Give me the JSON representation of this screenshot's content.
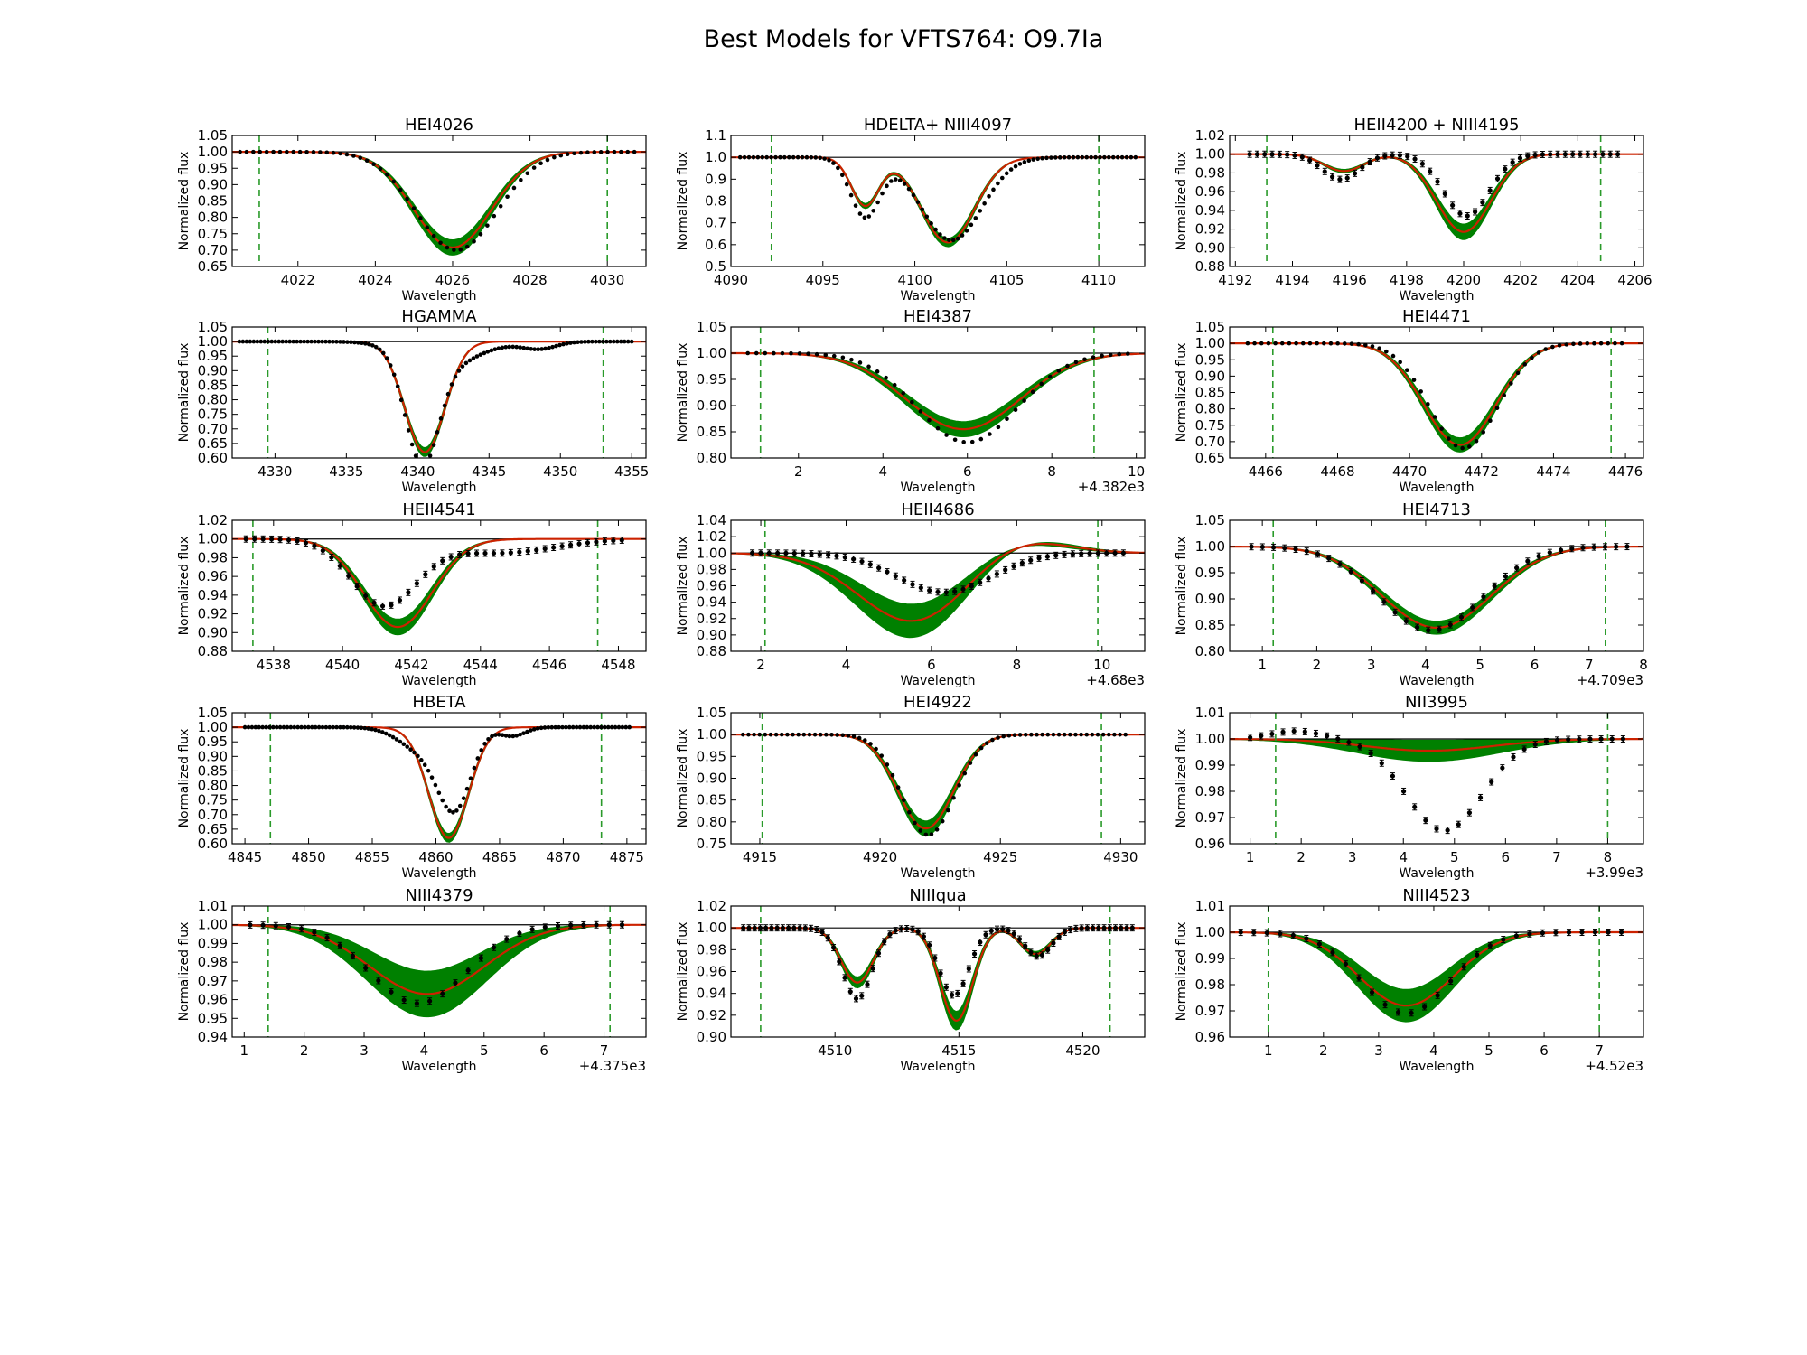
{
  "figure": {
    "title": "Best Models for VFTS764: O9.7Ia"
  },
  "colors": {
    "band": "#008000",
    "model": "#cc2200",
    "observed": "#000000",
    "window": "#2a9a2a",
    "continuum": "#000000"
  },
  "chart_data": [
    {
      "type": "line",
      "title": "HEI4026",
      "xlabel": "Wavelength",
      "ylabel": "Normalized flux",
      "xlim": [
        4020.3,
        4031.0
      ],
      "ylim": [
        0.65,
        1.05
      ],
      "xticks": [
        4022,
        4024,
        4026,
        4028,
        4030
      ],
      "xtick_labels": [
        "4022",
        "4024",
        "4026",
        "4028",
        "4030"
      ],
      "yticks": [
        0.65,
        0.7,
        0.75,
        0.8,
        0.85,
        0.9,
        0.95,
        1.0,
        1.05
      ],
      "ytick_labels": [
        "0.65",
        "0.70",
        "0.75",
        "0.80",
        "0.85",
        "0.90",
        "0.95",
        "1.00",
        "1.05"
      ],
      "offset_label": "",
      "window": [
        4021.0,
        4030.0
      ],
      "model_lines": [
        {
          "center": 4026.0,
          "depth": 0.292,
          "width": 1.0
        }
      ],
      "band_spread": 0.08,
      "observed_lines": [
        {
          "center": 4026.1,
          "depth": 0.3,
          "width": 1.05
        }
      ],
      "obs_range": [
        4020.5,
        4030.7
      ],
      "obs_points": 60,
      "error_bars": false
    },
    {
      "type": "line",
      "title": "HDELTA+ NIII4097",
      "xlabel": "Wavelength",
      "ylabel": "Normalized flux",
      "xlim": [
        4090.0,
        4112.5
      ],
      "ylim": [
        0.5,
        1.1
      ],
      "xticks": [
        4090,
        4095,
        4100,
        4105,
        4110
      ],
      "xtick_labels": [
        "4090",
        "4095",
        "4100",
        "4105",
        "4110"
      ],
      "yticks": [
        0.5,
        0.6,
        0.7,
        0.8,
        0.9,
        1.0,
        1.1
      ],
      "ytick_labels": [
        "0.5",
        "0.6",
        "0.7",
        "0.8",
        "0.9",
        "1.0",
        "1.1"
      ],
      "offset_label": "",
      "window": [
        4092.2,
        4110.0
      ],
      "model_lines": [
        {
          "center": 4097.3,
          "depth": 0.22,
          "width": 0.75
        },
        {
          "center": 4101.8,
          "depth": 0.39,
          "width": 1.45
        }
      ],
      "band_spread": 0.05,
      "observed_lines": [
        {
          "center": 4097.3,
          "depth": 0.27,
          "width": 0.8
        },
        {
          "center": 4102.0,
          "depth": 0.38,
          "width": 1.65
        }
      ],
      "obs_range": [
        4090.5,
        4112.0
      ],
      "obs_points": 90,
      "error_bars": false
    },
    {
      "type": "line",
      "title": "HEII4200 + NIII4195",
      "xlabel": "Wavelength",
      "ylabel": "Normalized flux",
      "xlim": [
        4191.8,
        4206.3
      ],
      "ylim": [
        0.88,
        1.02
      ],
      "xticks": [
        4192,
        4194,
        4196,
        4198,
        4200,
        4202,
        4204,
        4206
      ],
      "xtick_labels": [
        "4192",
        "4194",
        "4196",
        "4198",
        "4200",
        "4202",
        "4204",
        "4206"
      ],
      "yticks": [
        0.88,
        0.9,
        0.92,
        0.94,
        0.96,
        0.98,
        1.0,
        1.02
      ],
      "ytick_labels": [
        "0.88",
        "0.90",
        "0.92",
        "0.94",
        "0.96",
        "0.98",
        "1.00",
        "1.02"
      ],
      "offset_label": "",
      "window": [
        4193.1,
        4204.8
      ],
      "model_lines": [
        {
          "center": 4195.8,
          "depth": 0.018,
          "width": 0.7
        },
        {
          "center": 4200.0,
          "depth": 0.083,
          "width": 0.95
        }
      ],
      "band_spread": 0.1,
      "observed_lines": [
        {
          "center": 4195.7,
          "depth": 0.027,
          "width": 0.65
        },
        {
          "center": 4200.1,
          "depth": 0.066,
          "width": 0.8
        }
      ],
      "obs_range": [
        4192.5,
        4205.4
      ],
      "obs_points": 50,
      "error_bars": true
    },
    {
      "type": "line",
      "title": "HGAMMA",
      "xlabel": "Wavelength",
      "ylabel": "Normalized flux",
      "xlim": [
        4327.0,
        4356.0
      ],
      "ylim": [
        0.6,
        1.05
      ],
      "xticks": [
        4330,
        4335,
        4340,
        4345,
        4350,
        4355
      ],
      "xtick_labels": [
        "4330",
        "4335",
        "4340",
        "4345",
        "4350",
        "4355"
      ],
      "yticks": [
        0.6,
        0.65,
        0.7,
        0.75,
        0.8,
        0.85,
        0.9,
        0.95,
        1.0,
        1.05
      ],
      "ytick_labels": [
        "0.60",
        "0.65",
        "0.70",
        "0.75",
        "0.80",
        "0.85",
        "0.90",
        "0.95",
        "1.00",
        "1.05"
      ],
      "offset_label": "",
      "window": [
        4329.5,
        4353.0
      ],
      "model_lines": [
        {
          "center": 4340.5,
          "depth": 0.38,
          "width": 1.4
        }
      ],
      "band_spread": 0.04,
      "observed_lines": [
        {
          "center": 4340.3,
          "depth": 0.36,
          "width": 1.15
        },
        {
          "center": 4341.8,
          "depth": 0.08,
          "width": 2.4
        },
        {
          "center": 4348.5,
          "depth": 0.025,
          "width": 1.2
        }
      ],
      "obs_range": [
        4327.5,
        4355.0
      ],
      "obs_points": 110,
      "error_bars": false
    },
    {
      "type": "line",
      "title": "HEI4387",
      "xlabel": "Wavelength",
      "ylabel": "Normalized flux",
      "xlim": [
        0.4,
        10.2
      ],
      "ylim": [
        0.8,
        1.05
      ],
      "xticks": [
        2,
        4,
        6,
        8,
        10
      ],
      "xtick_labels": [
        "2",
        "4",
        "6",
        "8",
        "10"
      ],
      "yticks": [
        0.8,
        0.85,
        0.9,
        0.95,
        1.0,
        1.05
      ],
      "ytick_labels": [
        "0.80",
        "0.85",
        "0.90",
        "0.95",
        "1.00",
        "1.05"
      ],
      "offset_label": "+4.382e3",
      "window": [
        1.1,
        9.0
      ],
      "model_lines": [
        {
          "center": 5.9,
          "depth": 0.145,
          "width": 1.35
        }
      ],
      "band_spread": 0.1,
      "observed_lines": [
        {
          "center": 6.0,
          "depth": 0.17,
          "width": 1.2
        }
      ],
      "obs_range": [
        0.8,
        9.8
      ],
      "obs_points": 45,
      "error_bars": false
    },
    {
      "type": "line",
      "title": "HEI4471",
      "xlabel": "Wavelength",
      "ylabel": "Normalized flux",
      "xlim": [
        4465.0,
        4476.5
      ],
      "ylim": [
        0.65,
        1.05
      ],
      "xticks": [
        4466,
        4468,
        4470,
        4472,
        4474,
        4476
      ],
      "xtick_labels": [
        "4466",
        "4468",
        "4470",
        "4472",
        "4474",
        "4476"
      ],
      "yticks": [
        0.65,
        0.7,
        0.75,
        0.8,
        0.85,
        0.9,
        0.95,
        1.0,
        1.05
      ],
      "ytick_labels": [
        "0.65",
        "0.70",
        "0.75",
        "0.80",
        "0.85",
        "0.90",
        "0.95",
        "1.00",
        "1.05"
      ],
      "offset_label": "",
      "window": [
        4466.2,
        4475.6
      ],
      "model_lines": [
        {
          "center": 4471.4,
          "depth": 0.31,
          "width": 1.0
        }
      ],
      "band_spread": 0.07,
      "observed_lines": [
        {
          "center": 4471.5,
          "depth": 0.32,
          "width": 0.95
        }
      ],
      "obs_range": [
        4465.5,
        4475.9
      ],
      "obs_points": 55,
      "error_bars": false
    },
    {
      "type": "line",
      "title": "HEII4541",
      "xlabel": "Wavelength",
      "ylabel": "Normalized flux",
      "xlim": [
        4536.8,
        4548.8
      ],
      "ylim": [
        0.88,
        1.02
      ],
      "xticks": [
        4538,
        4540,
        4542,
        4544,
        4546,
        4548
      ],
      "xtick_labels": [
        "4538",
        "4540",
        "4542",
        "4544",
        "4546",
        "4548"
      ],
      "yticks": [
        0.88,
        0.9,
        0.92,
        0.94,
        0.96,
        0.98,
        1.0,
        1.02
      ],
      "ytick_labels": [
        "0.88",
        "0.90",
        "0.92",
        "0.94",
        "0.96",
        "0.98",
        "1.00",
        "1.02"
      ],
      "offset_label": "",
      "window": [
        4537.4,
        4547.4
      ],
      "model_lines": [
        {
          "center": 4541.6,
          "depth": 0.094,
          "width": 1.0
        }
      ],
      "band_spread": 0.09,
      "observed_lines": [
        {
          "center": 4541.2,
          "depth": 0.07,
          "width": 0.95
        },
        {
          "center": 4544.5,
          "depth": 0.015,
          "width": 1.6
        }
      ],
      "obs_range": [
        4537.2,
        4548.1
      ],
      "obs_points": 45,
      "error_bars": true
    },
    {
      "type": "line",
      "title": "HEII4686",
      "xlabel": "Wavelength",
      "ylabel": "Normalized flux",
      "xlim": [
        1.3,
        11.0
      ],
      "ylim": [
        0.88,
        1.04
      ],
      "xticks": [
        2,
        4,
        6,
        8,
        10
      ],
      "xtick_labels": [
        "2",
        "4",
        "6",
        "8",
        "10"
      ],
      "yticks": [
        0.88,
        0.9,
        0.92,
        0.94,
        0.96,
        0.98,
        1.0,
        1.02,
        1.04
      ],
      "ytick_labels": [
        "0.88",
        "0.90",
        "0.92",
        "0.94",
        "0.96",
        "0.98",
        "1.00",
        "1.02",
        "1.04"
      ],
      "offset_label": "+4.68e3",
      "window": [
        2.1,
        9.9
      ],
      "model_lines": [
        {
          "center": 5.6,
          "depth": 0.085,
          "width": 1.3
        },
        {
          "center": 7.9,
          "depth": -0.021,
          "width": 1.1
        }
      ],
      "band_spread": 0.25,
      "observed_lines": [
        {
          "center": 6.3,
          "depth": 0.048,
          "width": 1.1
        }
      ],
      "obs_range": [
        1.8,
        10.5
      ],
      "obs_points": 45,
      "error_bars": true
    },
    {
      "type": "line",
      "title": "HEI4713",
      "xlabel": "Wavelength",
      "ylabel": "Normalized flux",
      "xlim": [
        0.4,
        8.0
      ],
      "ylim": [
        0.8,
        1.05
      ],
      "xticks": [
        1,
        2,
        3,
        4,
        5,
        6,
        7,
        8
      ],
      "xtick_labels": [
        "1",
        "2",
        "3",
        "4",
        "5",
        "6",
        "7",
        "8"
      ],
      "yticks": [
        0.8,
        0.85,
        0.9,
        0.95,
        1.0,
        1.05
      ],
      "ytick_labels": [
        "0.80",
        "0.85",
        "0.90",
        "0.95",
        "1.00",
        "1.05"
      ],
      "offset_label": "+4.709e3",
      "window": [
        1.2,
        7.3
      ],
      "model_lines": [
        {
          "center": 4.2,
          "depth": 0.155,
          "width": 1.0
        }
      ],
      "band_spread": 0.08,
      "observed_lines": [
        {
          "center": 4.1,
          "depth": 0.16,
          "width": 0.95
        }
      ],
      "obs_range": [
        0.8,
        7.7
      ],
      "obs_points": 35,
      "error_bars": true
    },
    {
      "type": "line",
      "title": "HBETA",
      "xlabel": "Wavelength",
      "ylabel": "Normalized flux",
      "xlim": [
        4844.0,
        4876.5
      ],
      "ylim": [
        0.6,
        1.05
      ],
      "xticks": [
        4845,
        4850,
        4855,
        4860,
        4865,
        4870,
        4875
      ],
      "xtick_labels": [
        "4845",
        "4850",
        "4855",
        "4860",
        "4865",
        "4870",
        "4875"
      ],
      "yticks": [
        0.6,
        0.65,
        0.7,
        0.75,
        0.8,
        0.85,
        0.9,
        0.95,
        1.0,
        1.05
      ],
      "ytick_labels": [
        "0.60",
        "0.65",
        "0.70",
        "0.75",
        "0.80",
        "0.85",
        "0.90",
        "0.95",
        "1.00",
        "1.05"
      ],
      "offset_label": "",
      "window": [
        4847.0,
        4873.0
      ],
      "model_lines": [
        {
          "center": 4861.0,
          "depth": 0.38,
          "width": 1.55
        }
      ],
      "band_spread": 0.04,
      "observed_lines": [
        {
          "center": 4861.5,
          "depth": 0.26,
          "width": 1.3
        },
        {
          "center": 4859.0,
          "depth": 0.08,
          "width": 1.8
        },
        {
          "center": 4866.0,
          "depth": 0.03,
          "width": 1.0
        }
      ],
      "obs_range": [
        4845.0,
        4875.2
      ],
      "obs_points": 110,
      "error_bars": false
    },
    {
      "type": "line",
      "title": "HEI4922",
      "xlabel": "Wavelength",
      "ylabel": "Normalized flux",
      "xlim": [
        4913.8,
        4931.0
      ],
      "ylim": [
        0.75,
        1.05
      ],
      "xticks": [
        4915,
        4920,
        4925,
        4930
      ],
      "xtick_labels": [
        "4915",
        "4920",
        "4925",
        "4930"
      ],
      "yticks": [
        0.75,
        0.8,
        0.85,
        0.9,
        0.95,
        1.0,
        1.05
      ],
      "ytick_labels": [
        "0.75",
        "0.80",
        "0.85",
        "0.90",
        "0.95",
        "1.00",
        "1.05"
      ],
      "offset_label": "",
      "window": [
        4915.1,
        4929.2
      ],
      "model_lines": [
        {
          "center": 4921.9,
          "depth": 0.215,
          "width": 1.15
        }
      ],
      "band_spread": 0.08,
      "observed_lines": [
        {
          "center": 4922.0,
          "depth": 0.23,
          "width": 1.1
        }
      ],
      "obs_range": [
        4914.3,
        4930.2
      ],
      "obs_points": 70,
      "error_bars": false
    },
    {
      "type": "line",
      "title": "NII3995",
      "xlabel": "Wavelength",
      "ylabel": "Normalized flux",
      "xlim": [
        0.6,
        8.7
      ],
      "ylim": [
        0.96,
        1.01
      ],
      "xticks": [
        1,
        2,
        3,
        4,
        5,
        6,
        7,
        8
      ],
      "xtick_labels": [
        "1",
        "2",
        "3",
        "4",
        "5",
        "6",
        "7",
        "8"
      ],
      "yticks": [
        0.96,
        0.97,
        0.98,
        0.99,
        1.0,
        1.01
      ],
      "ytick_labels": [
        "0.96",
        "0.97",
        "0.98",
        "0.99",
        "1.00",
        "1.01"
      ],
      "offset_label": "+3.99e3",
      "window": [
        1.5,
        8.0
      ],
      "model_lines": [
        {
          "center": 4.5,
          "depth": 0.0045,
          "width": 1.25
        }
      ],
      "band_spread": 0.9,
      "observed_lines": [
        {
          "center": 4.8,
          "depth": 0.035,
          "width": 0.75
        },
        {
          "center": 1.9,
          "depth": -0.003,
          "width": 0.5
        }
      ],
      "obs_range": [
        1.0,
        8.3
      ],
      "obs_points": 35,
      "error_bars": true
    },
    {
      "type": "line",
      "title": "NIII4379",
      "xlabel": "Wavelength",
      "ylabel": "Normalized flux",
      "xlim": [
        0.8,
        7.7
      ],
      "ylim": [
        0.94,
        1.01
      ],
      "xticks": [
        1,
        2,
        3,
        4,
        5,
        6,
        7
      ],
      "xtick_labels": [
        "1",
        "2",
        "3",
        "4",
        "5",
        "6",
        "7"
      ],
      "yticks": [
        0.94,
        0.95,
        0.96,
        0.97,
        0.98,
        0.99,
        1.0,
        1.01
      ],
      "ytick_labels": [
        "0.94",
        "0.95",
        "0.96",
        "0.97",
        "0.98",
        "0.99",
        "1.00",
        "1.01"
      ],
      "offset_label": "+4.375e3",
      "window": [
        1.4,
        7.1
      ],
      "model_lines": [
        {
          "center": 4.05,
          "depth": 0.037,
          "width": 0.95
        }
      ],
      "band_spread": 0.33,
      "observed_lines": [
        {
          "center": 3.9,
          "depth": 0.042,
          "width": 0.8
        }
      ],
      "obs_range": [
        1.1,
        7.3
      ],
      "obs_points": 30,
      "error_bars": true
    },
    {
      "type": "line",
      "title": "NIIIqua",
      "xlabel": "Wavelength",
      "ylabel": "Normalized flux",
      "xlim": [
        4505.8,
        4522.5
      ],
      "ylim": [
        0.9,
        1.02
      ],
      "xticks": [
        4510,
        4515,
        4520
      ],
      "xtick_labels": [
        "4510",
        "4515",
        "4520"
      ],
      "yticks": [
        0.9,
        0.92,
        0.94,
        0.96,
        0.98,
        1.0,
        1.02
      ],
      "ytick_labels": [
        "0.90",
        "0.92",
        "0.94",
        "0.96",
        "0.98",
        "1.00",
        "1.02"
      ],
      "offset_label": "",
      "window": [
        4507.0,
        4521.1
      ],
      "model_lines": [
        {
          "center": 4510.9,
          "depth": 0.05,
          "width": 0.65
        },
        {
          "center": 4514.9,
          "depth": 0.085,
          "width": 0.65
        },
        {
          "center": 4518.1,
          "depth": 0.024,
          "width": 0.6
        }
      ],
      "band_spread": 0.1,
      "observed_lines": [
        {
          "center": 4510.9,
          "depth": 0.065,
          "width": 0.6
        },
        {
          "center": 4514.8,
          "depth": 0.062,
          "width": 0.6
        },
        {
          "center": 4518.2,
          "depth": 0.026,
          "width": 0.55
        }
      ],
      "obs_range": [
        4506.3,
        4522.0
      ],
      "obs_points": 70,
      "error_bars": true
    },
    {
      "type": "line",
      "title": "NIII4523",
      "xlabel": "Wavelength",
      "ylabel": "Normalized flux",
      "xlim": [
        0.3,
        7.8
      ],
      "ylim": [
        0.96,
        1.01
      ],
      "xticks": [
        1,
        2,
        3,
        4,
        5,
        6,
        7
      ],
      "xtick_labels": [
        "1",
        "2",
        "3",
        "4",
        "5",
        "6",
        "7"
      ],
      "yticks": [
        0.96,
        0.97,
        0.98,
        0.99,
        1.0,
        1.01
      ],
      "ytick_labels": [
        "0.96",
        "0.97",
        "0.98",
        "0.99",
        "1.00",
        "1.01"
      ],
      "offset_label": "+4.52e3",
      "window": [
        1.0,
        7.0
      ],
      "model_lines": [
        {
          "center": 3.5,
          "depth": 0.028,
          "width": 0.85
        }
      ],
      "band_spread": 0.22,
      "observed_lines": [
        {
          "center": 3.5,
          "depth": 0.031,
          "width": 0.8
        }
      ],
      "obs_range": [
        0.5,
        7.4
      ],
      "obs_points": 30,
      "error_bars": true
    }
  ]
}
